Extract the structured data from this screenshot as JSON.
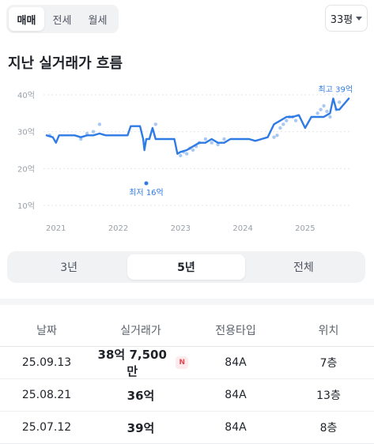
{
  "deal_tabs": [
    {
      "label": "매매",
      "active": true
    },
    {
      "label": "전세",
      "active": false
    },
    {
      "label": "월세",
      "active": false
    }
  ],
  "size_select": {
    "value": "33평"
  },
  "section_title": "지난 실거래가 흐름",
  "chart_data": {
    "type": "line",
    "x_tick_labels": [
      "2021",
      "2022",
      "2023",
      "2024",
      "2025"
    ],
    "y_tick_labels": [
      "40억",
      "30억",
      "20억",
      "10억"
    ],
    "y_ticks": [
      40,
      30,
      20,
      10
    ],
    "ylim": [
      10,
      40
    ],
    "xlim": [
      2020.8,
      2025.75
    ],
    "annotations": {
      "max_label": "최고 39억",
      "min_label": "최저 16억"
    },
    "colors": {
      "line": "#2f7be5",
      "points": "#a9c8f2"
    },
    "series": [
      {
        "x": [
          2020.85,
          2020.95,
          2021.0,
          2021.05,
          2021.1,
          2021.3,
          2021.4,
          2021.5,
          2021.6,
          2021.7,
          2021.8,
          2021.9,
          2022.0,
          2022.1,
          2022.15,
          2022.2,
          2022.3,
          2022.35,
          2022.4,
          2022.42,
          2022.45,
          2022.5,
          2022.55,
          2022.6,
          2022.7,
          2022.8,
          2022.9,
          2022.95,
          2023.0,
          2023.1,
          2023.2,
          2023.3,
          2023.4,
          2023.5,
          2023.6,
          2023.7,
          2023.8,
          2023.9,
          2024.0,
          2024.1,
          2024.2,
          2024.3,
          2024.4,
          2024.5,
          2024.6,
          2024.7,
          2024.8,
          2024.9,
          2025.0,
          2025.1,
          2025.2,
          2025.3,
          2025.4,
          2025.45,
          2025.5,
          2025.55,
          2025.6,
          2025.7
        ],
        "y": [
          29,
          28.5,
          27,
          29,
          29,
          29,
          28.5,
          29,
          29,
          29.5,
          29,
          29,
          29,
          29,
          29,
          31.5,
          31.5,
          31.5,
          28,
          25,
          28,
          28,
          31,
          28,
          28,
          28,
          28,
          24,
          24.5,
          25,
          26,
          27,
          27,
          28,
          27,
          27,
          28,
          28,
          28,
          28,
          27.5,
          28,
          28.5,
          32,
          33,
          34,
          34,
          34.5,
          31,
          34,
          34,
          34,
          35,
          39,
          36,
          36,
          37,
          39
        ]
      },
      {
        "name": "trades",
        "x": [
          2020.9,
          2021.4,
          2021.5,
          2021.6,
          2021.7,
          2022.45,
          2022.6,
          2023.0,
          2023.05,
          2023.1,
          2023.15,
          2023.2,
          2023.25,
          2023.3,
          2023.4,
          2023.5,
          2023.6,
          2023.7,
          2024.5,
          2024.55,
          2024.6,
          2024.65,
          2024.7,
          2024.75,
          2024.8,
          2024.85,
          2025.2,
          2025.25,
          2025.3,
          2025.35,
          2025.4,
          2025.5,
          2025.55
        ],
        "y": [
          29,
          28,
          29.5,
          30,
          32,
          16,
          32,
          23.5,
          24.5,
          24,
          25.5,
          25,
          26,
          27,
          28,
          27,
          26.5,
          28,
          28.5,
          29,
          31,
          32,
          33,
          34,
          34,
          33,
          35,
          36,
          37,
          35.5,
          34,
          36,
          38
        ]
      }
    ]
  },
  "range_tabs": [
    {
      "label": "3년",
      "active": false
    },
    {
      "label": "5년",
      "active": true
    },
    {
      "label": "전체",
      "active": false
    }
  ],
  "table": {
    "headers": [
      "날짜",
      "실거래가",
      "전용타입",
      "위치"
    ],
    "rows": [
      {
        "date": "25.09.13",
        "price": "38억 7,500만",
        "badge": "N",
        "type": "84A",
        "floor": "7층"
      },
      {
        "date": "25.08.21",
        "price": "36억",
        "badge": "",
        "type": "84A",
        "floor": "13층"
      },
      {
        "date": "25.07.12",
        "price": "39억",
        "badge": "",
        "type": "84A",
        "floor": "8층"
      }
    ]
  }
}
